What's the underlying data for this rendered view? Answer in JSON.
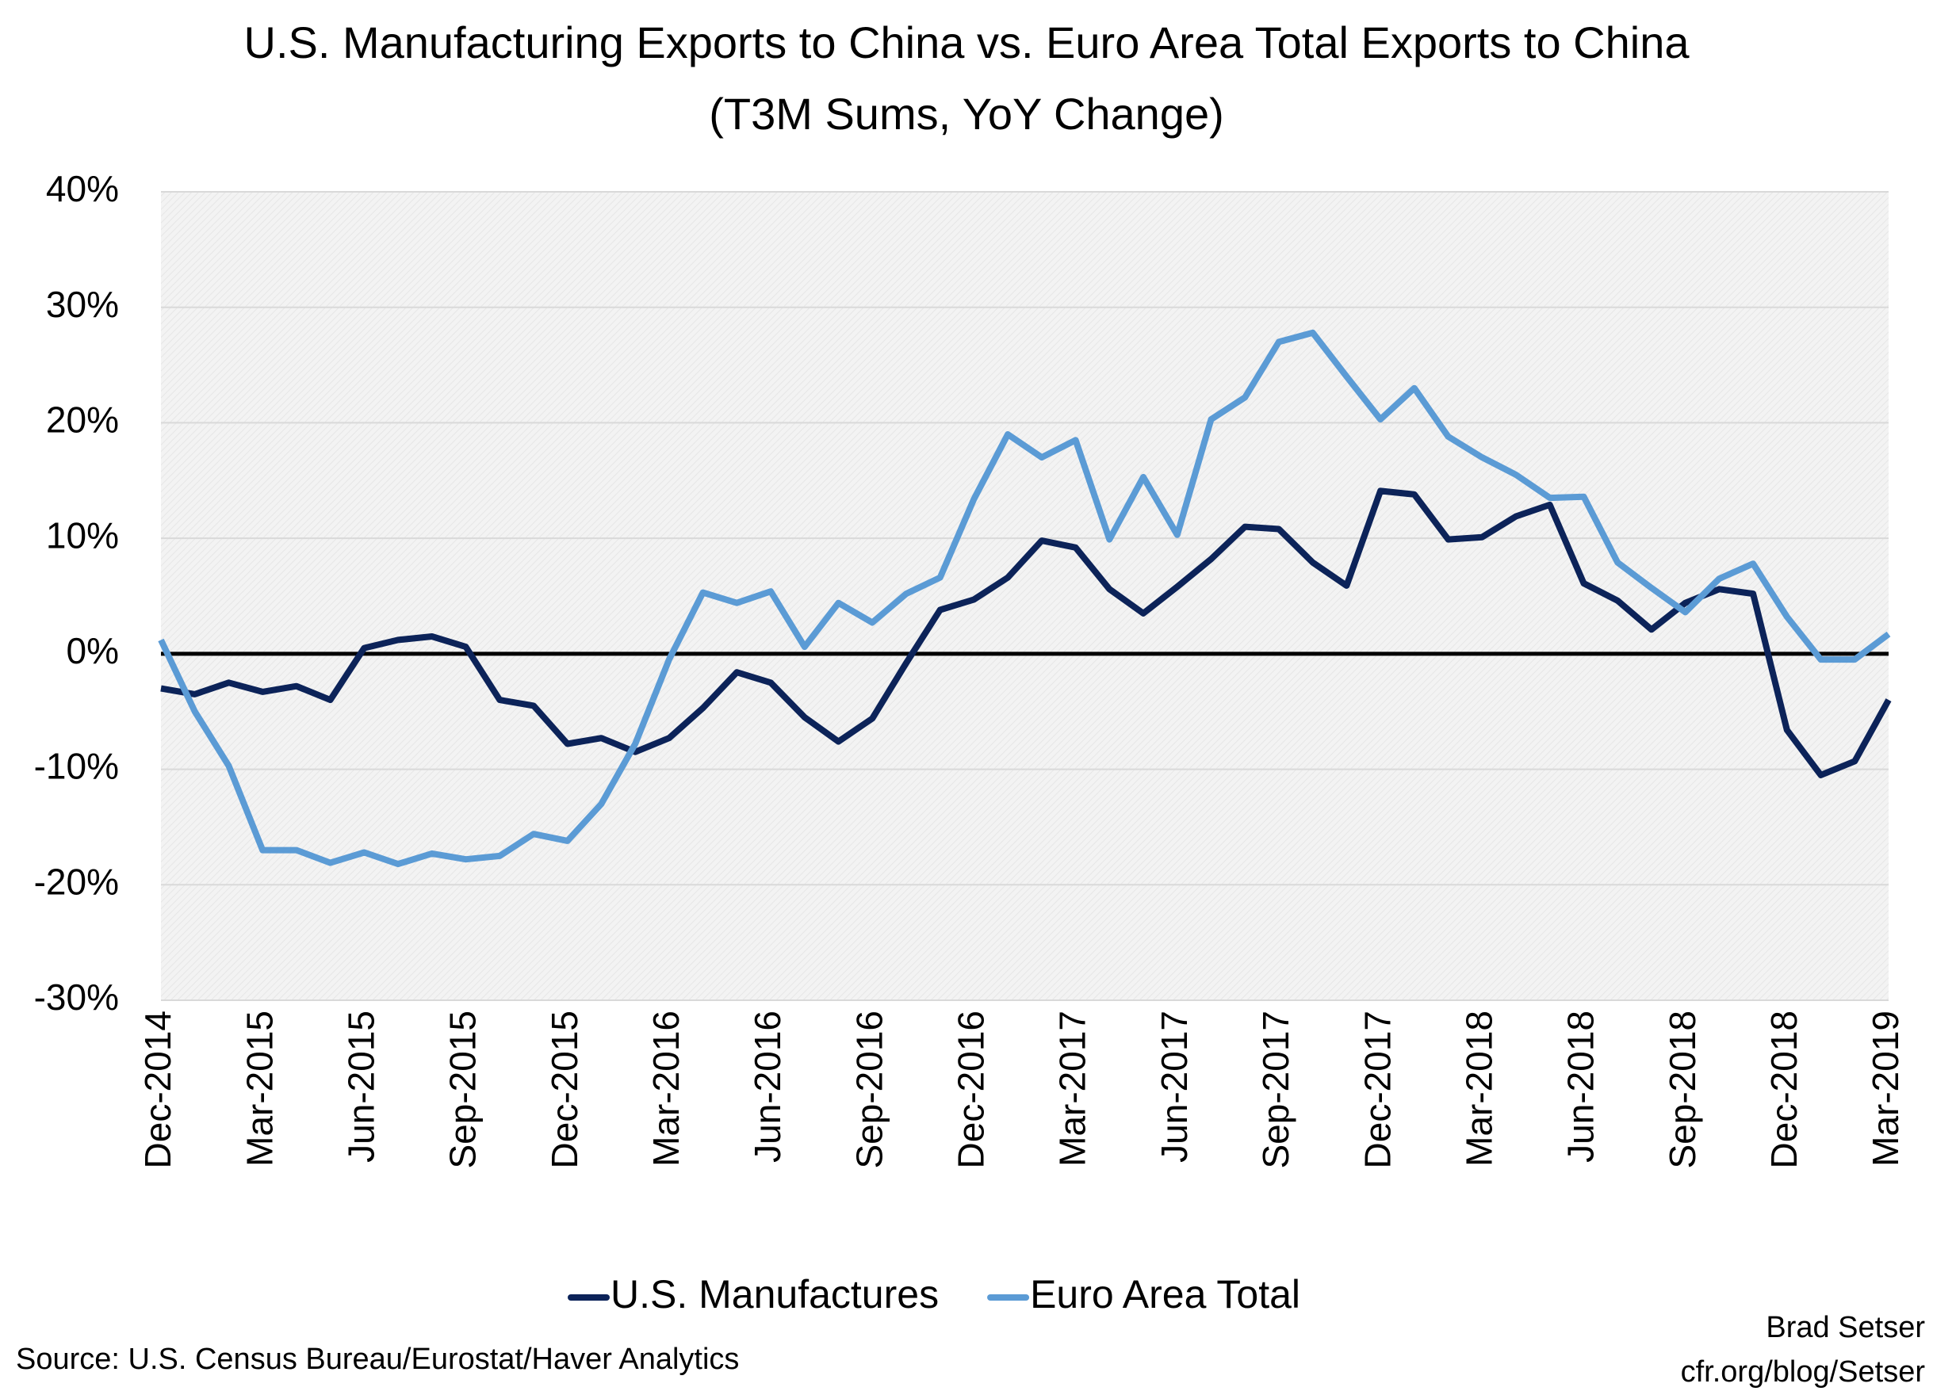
{
  "chart_data": {
    "type": "line",
    "title": "U.S. Manufacturing Exports to China vs. Euro Area Total Exports to China",
    "subtitle": "(T3M Sums, YoY Change)",
    "categories": [
      "Dec-2014",
      null,
      null,
      "Mar-2015",
      null,
      null,
      "Jun-2015",
      null,
      null,
      "Sep-2015",
      null,
      null,
      "Dec-2015",
      null,
      null,
      "Mar-2016",
      null,
      null,
      "Jun-2016",
      null,
      null,
      "Sep-2016",
      null,
      null,
      "Dec-2016",
      null,
      null,
      "Mar-2017",
      null,
      null,
      "Jun-2017",
      null,
      null,
      "Sep-2017",
      null,
      null,
      "Dec-2017",
      null,
      null,
      "Mar-2018",
      null,
      null,
      "Jun-2018",
      null,
      null,
      "Sep-2018",
      null,
      null,
      "Dec-2018",
      null,
      null,
      "Mar-2019"
    ],
    "series": [
      {
        "name": "U.S. Manufactures",
        "color": "#0c2359",
        "values": [
          -3,
          -3.5,
          -2.5,
          -3.3,
          -2.8,
          -4,
          0.5,
          1.2,
          1.5,
          0.6,
          -4,
          -4.5,
          -7.8,
          -7.3,
          -8.5,
          -7.3,
          -4.7,
          -1.6,
          -2.5,
          -5.5,
          -7.6,
          -5.6,
          -0.8,
          3.8,
          4.7,
          6.6,
          9.8,
          9.2,
          5.6,
          3.5,
          5.8,
          8.2,
          11,
          10.8,
          7.9,
          5.9,
          14.1,
          13.8,
          9.9,
          10.1,
          11.9,
          12.9,
          6.1,
          4.6,
          2.1,
          4.4,
          5.6,
          5.2,
          -6.6,
          -10.5,
          -9.3,
          -4
        ]
      },
      {
        "name": "Euro Area Total",
        "color": "#5b9bd5",
        "values": [
          1.2,
          -5,
          -9.7,
          -17,
          -17,
          -18.1,
          -17.2,
          -18.2,
          -17.3,
          -17.8,
          -17.5,
          -15.6,
          -16.2,
          -13,
          -7.8,
          -0.5,
          5.3,
          4.4,
          5.4,
          0.6,
          4.4,
          2.7,
          5.2,
          6.6,
          13.4,
          19,
          17,
          18.5,
          9.9,
          15.3,
          10.3,
          20.3,
          22.2,
          27,
          27.8,
          24,
          20.3,
          23,
          18.8,
          17,
          15.5,
          13.5,
          13.6,
          7.9,
          5.7,
          3.6,
          6.5,
          7.8,
          3.2,
          -0.5,
          -0.5,
          1.7
        ]
      }
    ],
    "ylim": [
      -30,
      40
    ],
    "yticks": [
      {
        "value": -30,
        "label": "-30%"
      },
      {
        "value": -20,
        "label": "-20%"
      },
      {
        "value": -10,
        "label": "-10%"
      },
      {
        "value": 0,
        "label": "0%"
      },
      {
        "value": 10,
        "label": "10%"
      },
      {
        "value": 20,
        "label": "20%"
      },
      {
        "value": 30,
        "label": "30%"
      },
      {
        "value": 40,
        "label": "40%"
      }
    ],
    "grid": true,
    "legend": "bottom",
    "source": "Source: U.S. Census Bureau/Eurostat/Haver Analytics",
    "credit": [
      "Brad Setser",
      "cfr.org/blog/Setser"
    ]
  }
}
